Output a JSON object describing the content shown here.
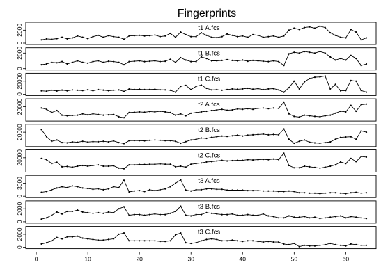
{
  "chart_data": {
    "type": "line",
    "title": "Fingerprints",
    "x": [
      1,
      2,
      3,
      4,
      5,
      6,
      7,
      8,
      9,
      10,
      11,
      12,
      13,
      14,
      15,
      16,
      17,
      18,
      19,
      20,
      21,
      22,
      23,
      24,
      25,
      26,
      27,
      28,
      29,
      30,
      31,
      32,
      33,
      34,
      35,
      36,
      37,
      38,
      39,
      40,
      41,
      42,
      43,
      44,
      45,
      46,
      47,
      48,
      49,
      50,
      51,
      52,
      53,
      54,
      55,
      56,
      57,
      58,
      59,
      60,
      61,
      62,
      63,
      64
    ],
    "xlim": [
      1,
      64
    ],
    "x_ticks": [
      0,
      10,
      20,
      30,
      40,
      50,
      60
    ],
    "panels": [
      {
        "name": "t1 A.fcs",
        "ylim": [
          0,
          3000
        ],
        "y_ticks": [
          {
            "value": 0,
            "label": "0"
          },
          {
            "value": 2000,
            "label": "2000"
          }
        ],
        "values": [
          500,
          650,
          600,
          700,
          900,
          650,
          800,
          1100,
          900,
          700,
          1000,
          1200,
          900,
          1150,
          1000,
          900,
          600,
          1100,
          1150,
          1200,
          1100,
          1150,
          1250,
          1000,
          1100,
          1500,
          900,
          1700,
          1300,
          1000,
          1000,
          1600,
          1200,
          900,
          850,
          1000,
          1400,
          1200,
          1000,
          1100,
          900,
          1300,
          1200,
          900,
          1000,
          1100,
          900,
          1100,
          2000,
          2300,
          2100,
          2400,
          2500,
          2300,
          2600,
          2400,
          1600,
          1200,
          900,
          800,
          2100,
          1700,
          500,
          800
        ]
      },
      {
        "name": "t1 B.fcs",
        "ylim": [
          0,
          2500
        ],
        "y_ticks": [
          {
            "value": 0,
            "label": "0"
          },
          {
            "value": 2000,
            "label": "2000"
          }
        ],
        "values": [
          500,
          600,
          800,
          750,
          900,
          600,
          800,
          1000,
          800,
          700,
          900,
          1000,
          800,
          950,
          900,
          800,
          500,
          900,
          950,
          1000,
          900,
          950,
          1000,
          900,
          950,
          1200,
          800,
          1400,
          1100,
          900,
          900,
          1500,
          1300,
          1000,
          1000,
          1050,
          1150,
          1050,
          1000,
          1100,
          950,
          1050,
          1000,
          950,
          900,
          1000,
          900,
          400,
          1900,
          2100,
          2000,
          2200,
          2100,
          2000,
          2200,
          2000,
          1500,
          1100,
          1300,
          1100,
          1700,
          1300,
          400,
          600
        ]
      },
      {
        "name": "t1 C.fcs",
        "ylim": [
          0,
          30000
        ],
        "y_ticks": [
          {
            "value": 0,
            "label": "0"
          },
          {
            "value": 20000,
            "label": "20000"
          }
        ],
        "values": [
          5000,
          4500,
          6000,
          4800,
          6200,
          5000,
          6500,
          6000,
          5500,
          6800,
          5200,
          7000,
          6200,
          5200,
          6000,
          6500,
          4200,
          7800,
          7200,
          7500,
          7000,
          7200,
          7500,
          6800,
          6500,
          6000,
          3000,
          12000,
          13500,
          7000,
          12000,
          14000,
          9000,
          6500,
          7000,
          6000,
          7000,
          8000,
          7500,
          8000,
          9000,
          7500,
          8500,
          7000,
          8000,
          8500,
          6500,
          3000,
          10000,
          20000,
          8000,
          19000,
          24000,
          26000,
          26500,
          28000,
          8000,
          15000,
          5000,
          5500,
          21000,
          20000,
          5500,
          3000
        ]
      },
      {
        "name": "t2 A.fcs",
        "ylim": [
          0,
          30000
        ],
        "y_ticks": [
          {
            "value": 20000,
            "label": "20000"
          }
        ],
        "values": [
          18000,
          16000,
          11000,
          14000,
          7000,
          6000,
          6500,
          7000,
          9000,
          7500,
          9000,
          8000,
          7000,
          7500,
          8000,
          4500,
          3000,
          11000,
          11500,
          12000,
          11500,
          12500,
          12000,
          13000,
          12000,
          11000,
          7000,
          9000,
          6000,
          10000,
          11000,
          12000,
          13000,
          14000,
          15000,
          16000,
          14500,
          15000,
          16500,
          16000,
          17000,
          16000,
          17500,
          18000,
          17000,
          18000,
          17500,
          27000,
          9000,
          5000,
          4000,
          7000,
          6000,
          5000,
          4500,
          6000,
          7000,
          10000,
          13000,
          12000,
          22000,
          13000,
          23000,
          24000
        ]
      },
      {
        "name": "t2 B.fcs",
        "ylim": [
          0,
          30000
        ],
        "y_ticks": [
          {
            "value": 20000,
            "label": "20000"
          }
        ],
        "values": [
          24000,
          13000,
          6000,
          8000,
          4000,
          3500,
          5000,
          4500,
          6000,
          4800,
          5500,
          5200,
          6000,
          5000,
          6500,
          4000,
          2500,
          7000,
          7200,
          7000,
          6800,
          7500,
          8000,
          7500,
          7000,
          7000,
          6000,
          3000,
          5500,
          8000,
          9000,
          11000,
          10500,
          12000,
          13000,
          14000,
          13500,
          14500,
          15500,
          14000,
          15500,
          16000,
          16500,
          17000,
          16000,
          16500,
          16000,
          25000,
          9000,
          3000,
          6000,
          8000,
          4500,
          3500,
          3000,
          4000,
          5000,
          9000,
          12000,
          12500,
          13000,
          9000,
          22000,
          20000
        ]
      },
      {
        "name": "t2 C.fcs",
        "ylim": [
          0,
          30000
        ],
        "y_ticks": [
          {
            "value": 20000,
            "label": "20000"
          }
        ],
        "values": [
          19000,
          17000,
          11000,
          13000,
          6000,
          6500,
          5500,
          7000,
          8000,
          7000,
          8000,
          9000,
          7000,
          7000,
          7500,
          4000,
          3000,
          9000,
          9000,
          9500,
          9500,
          10000,
          10000,
          10500,
          10000,
          10000,
          6000,
          7000,
          5500,
          10000,
          11000,
          12000,
          13500,
          14000,
          15000,
          16000,
          15000,
          15500,
          16000,
          16000,
          17000,
          16500,
          17000,
          17500,
          17000,
          18000,
          17000,
          27000,
          8000,
          4500,
          4500,
          7000,
          6000,
          5000,
          4000,
          5500,
          7000,
          9000,
          13500,
          11000,
          19000,
          14000,
          22000,
          21000
        ]
      },
      {
        "name": "t3 A.fcs",
        "ylim": [
          0,
          4500
        ],
        "y_ticks": [
          {
            "value": 0,
            "label": "0"
          },
          {
            "value": 3000,
            "label": "3000"
          }
        ],
        "values": [
          900,
          1100,
          1500,
          1900,
          2200,
          2000,
          2400,
          2200,
          1900,
          1800,
          1600,
          1700,
          1500,
          1700,
          2200,
          2000,
          3700,
          1000,
          1200,
          1300,
          1100,
          1500,
          1300,
          1500,
          1700,
          2200,
          3000,
          3800,
          1400,
          1200,
          1500,
          1500,
          1700,
          1700,
          1600,
          1600,
          1400,
          1400,
          1400,
          1400,
          1300,
          1300,
          1300,
          1200,
          1200,
          1200,
          1100,
          1100,
          1200,
          1100,
          800,
          800,
          700,
          700,
          600,
          700,
          800,
          800,
          700,
          600,
          800,
          900,
          700,
          800
        ]
      },
      {
        "name": "t3 B.fcs",
        "ylim": [
          0,
          3000
        ],
        "y_ticks": [
          {
            "value": 0,
            "label": "0"
          },
          {
            "value": 2000,
            "label": "2000"
          }
        ],
        "values": [
          400,
          600,
          1000,
          1500,
          1200,
          1600,
          1600,
          1800,
          1500,
          1400,
          1300,
          1400,
          1300,
          1500,
          1400,
          2000,
          2300,
          1000,
          1100,
          1100,
          1000,
          1100,
          1200,
          1100,
          1100,
          1300,
          1600,
          2400,
          1000,
          900,
          1100,
          1100,
          1400,
          1300,
          1200,
          1100,
          1100,
          1200,
          1000,
          1000,
          1100,
          1000,
          1000,
          1200,
          900,
          800,
          600,
          600,
          900,
          700,
          700,
          800,
          600,
          700,
          500,
          600,
          700,
          800,
          900,
          600,
          800,
          700,
          600,
          500
        ]
      },
      {
        "name": "t3 C.fcs",
        "ylim": [
          0,
          3000
        ],
        "y_ticks": [
          {
            "value": 0,
            "label": "0"
          },
          {
            "value": 2000,
            "label": "2000"
          }
        ],
        "values": [
          500,
          700,
          1000,
          1500,
          1300,
          1600,
          1600,
          1700,
          1400,
          1300,
          1200,
          1100,
          1100,
          1200,
          1300,
          2000,
          2200,
          1000,
          1000,
          1000,
          1000,
          1000,
          1000,
          900,
          900,
          1000,
          1900,
          2200,
          700,
          600,
          700,
          1000,
          1200,
          1300,
          1200,
          1000,
          1000,
          1100,
          1000,
          900,
          1000,
          1000,
          900,
          800,
          900,
          800,
          800,
          500,
          400,
          600,
          100,
          300,
          200,
          200,
          300,
          400,
          600,
          400,
          300,
          200,
          500,
          400,
          300,
          300
        ]
      }
    ]
  }
}
